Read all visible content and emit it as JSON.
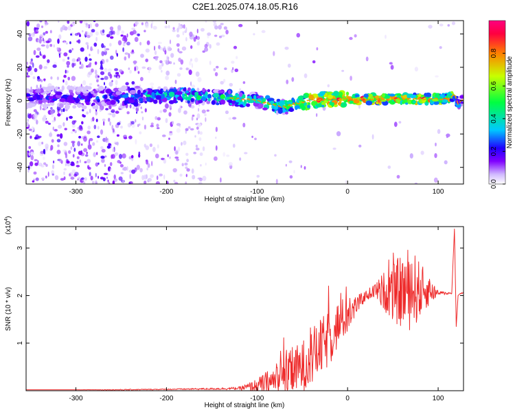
{
  "title": "C2E1.2025.074.18.05.R16",
  "chart_data": [
    {
      "type": "heatmap",
      "xlabel": "Height of straight line (km)",
      "ylabel": "Frequency (Hz)",
      "xlim": [
        -355,
        128
      ],
      "ylim": [
        -50,
        48
      ],
      "xticks": [
        -300,
        -200,
        -100,
        0,
        100
      ],
      "xtick_labels": [
        "-300",
        "-200",
        "-100",
        "0",
        "100"
      ],
      "yticks": [
        -40,
        -20,
        0,
        20,
        40
      ],
      "ytick_labels": [
        "-40",
        "-20",
        "0",
        "20",
        "40"
      ],
      "colorbar": {
        "label": "Normalized spectral amplitude",
        "range": [
          0,
          1
        ],
        "ticks": [
          0,
          0.2,
          0.4,
          0.6,
          0.8
        ],
        "tick_labels": [
          "0.0",
          "0.2",
          "0.4",
          "0.6",
          "0.8"
        ],
        "colors": [
          "#ffffff",
          "#d0b8ff",
          "#8000ff",
          "#2000ff",
          "#00c8ff",
          "#00ff40",
          "#c8ff00",
          "#ff8000",
          "#ff0040",
          "#ff0080"
        ]
      },
      "ridge": {
        "x": [
          -355,
          -300,
          -250,
          -220,
          -180,
          -140,
          -120,
          -100,
          -80,
          -70,
          -60,
          -50,
          -40,
          -20,
          0,
          20,
          40,
          60,
          80,
          100,
          112,
          118,
          122,
          128
        ],
        "freq": [
          2,
          2,
          2,
          3,
          3,
          2,
          1,
          0,
          -3,
          -4,
          -2,
          -1,
          0,
          1,
          1,
          1,
          1,
          1,
          1,
          1,
          1,
          4,
          -2,
          1
        ],
        "amplitude": [
          0.25,
          0.25,
          0.3,
          0.4,
          0.45,
          0.5,
          0.5,
          0.45,
          0.5,
          0.55,
          0.6,
          0.7,
          0.8,
          0.85,
          0.8,
          0.85,
          0.8,
          0.85,
          0.85,
          0.8,
          0.8,
          0.6,
          0.4,
          0.3
        ]
      }
    },
    {
      "type": "line",
      "xlabel": "Height of straight line (km)",
      "ylabel": "SNR (10 * v/v)",
      "multiplier_label": "(x10",
      "multiplier_exp": "4",
      "multiplier_close": ")",
      "xlim": [
        -355,
        128
      ],
      "ylim": [
        0,
        3.45
      ],
      "xticks": [
        -300,
        -200,
        -100,
        0,
        100
      ],
      "xtick_labels": [
        "-300",
        "-200",
        "-100",
        "0",
        "100"
      ],
      "yticks": [
        1,
        2,
        3
      ],
      "ytick_labels": [
        "1",
        "2",
        "3"
      ],
      "color": "#ee2a2a",
      "series": [
        {
          "x": [
            -355,
            -300,
            -250,
            -200,
            -150,
            -120,
            -100,
            -90,
            -80,
            -70,
            -60,
            -50,
            -40,
            -30,
            -20,
            -10,
            0,
            10,
            20,
            30,
            40,
            50,
            60,
            70,
            80,
            90,
            100,
            110,
            115,
            118,
            120,
            122,
            125,
            128
          ],
          "y": [
            0.02,
            0.02,
            0.02,
            0.03,
            0.04,
            0.05,
            0.1,
            0.15,
            0.2,
            0.3,
            0.4,
            0.5,
            0.7,
            0.9,
            1.1,
            1.4,
            1.6,
            1.8,
            2.0,
            2.1,
            2.1,
            2.05,
            2.1,
            2.15,
            2.1,
            2.1,
            2.05,
            2.05,
            2.05,
            3.4,
            1.35,
            2.0,
            2.05,
            2.05
          ],
          "noise": [
            0,
            0,
            0.01,
            0.01,
            0.02,
            0.03,
            0.15,
            0.25,
            0.35,
            0.4,
            0.5,
            0.55,
            0.6,
            0.6,
            0.6,
            0.5,
            0.4,
            0.2,
            0.1,
            0.15,
            0.4,
            0.6,
            0.8,
            0.9,
            0.6,
            0.3,
            0.05,
            0.03,
            0.02,
            0,
            0,
            0,
            0.02,
            0.02
          ]
        }
      ]
    }
  ]
}
